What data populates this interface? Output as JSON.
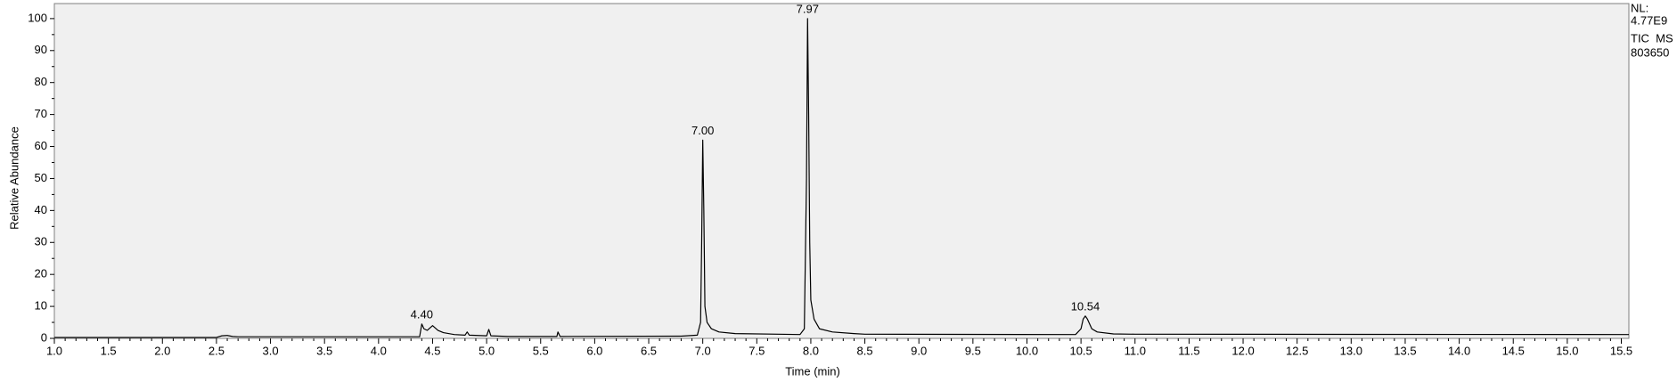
{
  "chart_data": {
    "type": "line",
    "x_label": "Time (min)",
    "y_label": "Relative Abundance",
    "color": "#000000",
    "x": [
      1.0,
      2.5,
      2.55,
      2.6,
      2.65,
      2.7,
      4.38,
      4.4,
      4.42,
      4.45,
      4.5,
      4.55,
      4.6,
      4.7,
      4.8,
      4.82,
      4.84,
      5.0,
      5.02,
      5.04,
      5.2,
      5.65,
      5.66,
      5.68,
      6.8,
      6.95,
      6.98,
      6.99,
      7.0,
      7.01,
      7.02,
      7.04,
      7.08,
      7.15,
      7.3,
      7.9,
      7.94,
      7.96,
      7.97,
      7.98,
      7.99,
      8.0,
      8.03,
      8.08,
      8.2,
      8.4,
      8.5,
      10.45,
      10.5,
      10.52,
      10.54,
      10.56,
      10.6,
      10.65,
      10.8,
      11.0,
      15.57
    ],
    "values": [
      0.3,
      0.3,
      0.8,
      0.9,
      0.6,
      0.5,
      0.5,
      4.5,
      3,
      2.5,
      4,
      2.5,
      1.8,
      1.2,
      1,
      2,
      1,
      0.8,
      2.8,
      0.8,
      0.6,
      0.6,
      2,
      0.6,
      0.7,
      1,
      5,
      30,
      62,
      40,
      10,
      5,
      3,
      2,
      1.5,
      1.2,
      3,
      50,
      100,
      70,
      30,
      12,
      6,
      3,
      2,
      1.5,
      1.3,
      1.2,
      3,
      6,
      7,
      6,
      3,
      2,
      1.4,
      1.3,
      1.2
    ],
    "xlim": [
      1.0,
      15.57
    ],
    "ylim": [
      0,
      104.7
    ],
    "xticks": [
      {
        "value": 1.0,
        "label": "1.0"
      },
      {
        "value": 1.5,
        "label": "1.5"
      },
      {
        "value": 2.0,
        "label": "2.0"
      },
      {
        "value": 2.5,
        "label": "2.5"
      },
      {
        "value": 3.0,
        "label": "3.0"
      },
      {
        "value": 3.5,
        "label": "3.5"
      },
      {
        "value": 4.0,
        "label": "4.0"
      },
      {
        "value": 4.5,
        "label": "4.5"
      },
      {
        "value": 5.0,
        "label": "5.0"
      },
      {
        "value": 5.5,
        "label": "5.5"
      },
      {
        "value": 6.0,
        "label": "6.0"
      },
      {
        "value": 6.5,
        "label": "6.5"
      },
      {
        "value": 7.0,
        "label": "7.0"
      },
      {
        "value": 7.5,
        "label": "7.5"
      },
      {
        "value": 8.0,
        "label": "8.0"
      },
      {
        "value": 8.5,
        "label": "8.5"
      },
      {
        "value": 9.0,
        "label": "9.0"
      },
      {
        "value": 9.5,
        "label": "9.5"
      },
      {
        "value": 10.0,
        "label": "10.0"
      },
      {
        "value": 10.5,
        "label": "10.5"
      },
      {
        "value": 11.0,
        "label": "11.0"
      },
      {
        "value": 11.5,
        "label": "11.5"
      },
      {
        "value": 12.0,
        "label": "12.0"
      },
      {
        "value": 12.5,
        "label": "12.5"
      },
      {
        "value": 13.0,
        "label": "13.0"
      },
      {
        "value": 13.5,
        "label": "13.5"
      },
      {
        "value": 14.0,
        "label": "14.0"
      },
      {
        "value": 14.5,
        "label": "14.5"
      },
      {
        "value": 15.0,
        "label": "15.0"
      },
      {
        "value": 15.5,
        "label": "15.5"
      }
    ],
    "xminorticks": [
      1.1,
      1.2,
      1.3,
      1.4,
      1.6,
      1.7,
      1.8,
      1.9,
      2.1,
      2.2,
      2.3,
      2.4,
      2.6,
      2.7,
      2.8,
      2.9,
      3.1,
      3.2,
      3.3,
      3.4,
      3.6,
      3.7,
      3.8,
      3.9,
      4.1,
      4.2,
      4.3,
      4.4,
      4.6,
      4.7,
      4.8,
      4.9,
      5.1,
      5.2,
      5.3,
      5.4,
      5.6,
      5.7,
      5.8,
      5.9,
      6.1,
      6.2,
      6.3,
      6.4,
      6.6,
      6.7,
      6.8,
      6.9,
      7.1,
      7.2,
      7.3,
      7.4,
      7.6,
      7.7,
      7.8,
      7.9,
      8.1,
      8.2,
      8.3,
      8.4,
      8.6,
      8.7,
      8.8,
      8.9,
      9.1,
      9.2,
      9.3,
      9.4,
      9.6,
      9.7,
      9.8,
      9.9,
      10.1,
      10.2,
      10.3,
      10.4,
      10.6,
      10.7,
      10.8,
      10.9,
      11.1,
      11.2,
      11.3,
      11.4,
      11.6,
      11.7,
      11.8,
      11.9,
      12.1,
      12.2,
      12.3,
      12.4,
      12.6,
      12.7,
      12.8,
      12.9,
      13.1,
      13.2,
      13.3,
      13.4,
      13.6,
      13.7,
      13.8,
      13.9,
      14.1,
      14.2,
      14.3,
      14.4,
      14.6,
      14.7,
      14.8,
      14.9,
      15.1,
      15.2,
      15.3,
      15.4
    ],
    "yticks": [
      0,
      10,
      20,
      30,
      40,
      50,
      60,
      70,
      80,
      90,
      100
    ],
    "yminorticks": [
      5,
      15,
      25,
      35,
      45,
      55,
      65,
      75,
      85,
      95
    ],
    "peak_labels": [
      {
        "value": 4.4,
        "label": "4.40",
        "height": 4.5
      },
      {
        "value": 7.0,
        "label": "7.00",
        "height": 62
      },
      {
        "value": 7.97,
        "label": "7.97",
        "height": 100
      },
      {
        "value": 10.54,
        "label": "10.54",
        "height": 7
      }
    ],
    "info": [
      "NL:",
      "4.77E9",
      "TIC  MS",
      "803650"
    ]
  }
}
